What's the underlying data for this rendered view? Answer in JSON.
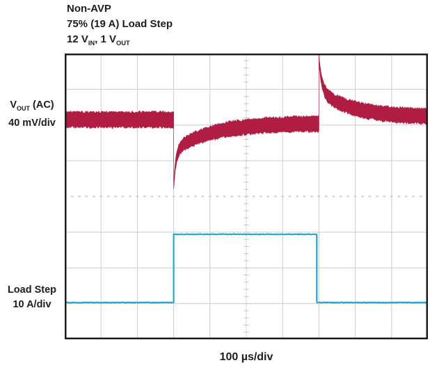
{
  "title": {
    "lines": [
      [
        {
          "t": "Non-AVP"
        }
      ],
      [
        {
          "t": "75% (19 A) Load Step"
        }
      ],
      [
        {
          "t": "12 V"
        },
        {
          "t": "IN",
          "s": true
        },
        {
          "t": ", 1 V"
        },
        {
          "t": "OUT",
          "s": true
        }
      ]
    ]
  },
  "labels": {
    "ch1": [
      [
        {
          "t": "V"
        },
        {
          "t": "OUT",
          "s": true
        },
        {
          "t": " (AC)"
        }
      ],
      [
        {
          "t": "40 mV/div"
        }
      ]
    ],
    "ch2": [
      [
        {
          "t": "Load Step"
        }
      ],
      [
        {
          "t": "10 A/div"
        }
      ]
    ],
    "xaxis": "100 µs/div"
  },
  "chart_data": {
    "type": "line",
    "subtype": "oscilloscope",
    "title": "Non-AVP 75% (19 A) Load Step, 12 VIN, 1 VOUT",
    "x_axis": {
      "label": "100 µs/div",
      "us_per_div": 100,
      "divisions": 10,
      "total_us": 1000
    },
    "grid": {
      "cols": 10,
      "rows": 8,
      "center_crosshair": true
    },
    "noise_seed": 42,
    "series": [
      {
        "name": "VOUT (AC)",
        "units": "mV",
        "scale_per_div": 40,
        "color": "#B01C42",
        "baseline_div_from_top": 1.85,
        "ripple_half_div": 0.215,
        "ripple_mv_pp": 17,
        "edge_jitter_div": 0.034,
        "taper": {
          "min_factor": 0.32,
          "span_div": 1.9
        },
        "events": {
          "load_step_us": 300,
          "undershoot_mv": 75,
          "load_release_us": 700,
          "overshoot_mv": 68
        },
        "segments": [
          {
            "type": "flat",
            "t0": 0.0,
            "t1": 3.0,
            "level": 1.85
          },
          {
            "type": "recovery",
            "t0": 3.0,
            "t1": 7.0,
            "dir": "below",
            "target": 1.95,
            "a1": 1.0,
            "tau1": 0.06,
            "a2": 0.77,
            "tau2": 1.0
          },
          {
            "type": "recovery",
            "t0": 7.0,
            "t1": 10.0,
            "dir": "above",
            "target": 1.78,
            "a1": 0.9,
            "tau1": 0.08,
            "a2": 0.73,
            "tau2": 0.9
          }
        ]
      },
      {
        "name": "Load Step",
        "units": "A",
        "scale_per_div": 10,
        "color": "#2AA5CC",
        "low_a": 0,
        "high_a": 19,
        "step_rise_us": 300,
        "step_fall_us": 694,
        "stroke_px": 2.2,
        "noise_div": 0.008,
        "segments": [
          {
            "type": "flat",
            "t0": 0.0,
            "t1": 3.0,
            "level": 6.97
          },
          {
            "type": "flat",
            "t0": 3.0,
            "t1": 6.94,
            "level": 5.06
          },
          {
            "type": "flat",
            "t0": 6.94,
            "t1": 10.0,
            "level": 6.97
          }
        ]
      }
    ],
    "colors": {
      "grid": "#cdcdcd",
      "center_marks": "#c2c2c2",
      "center_line": "#dadada",
      "border": "#1c1c1c",
      "background": "#ffffff"
    }
  }
}
